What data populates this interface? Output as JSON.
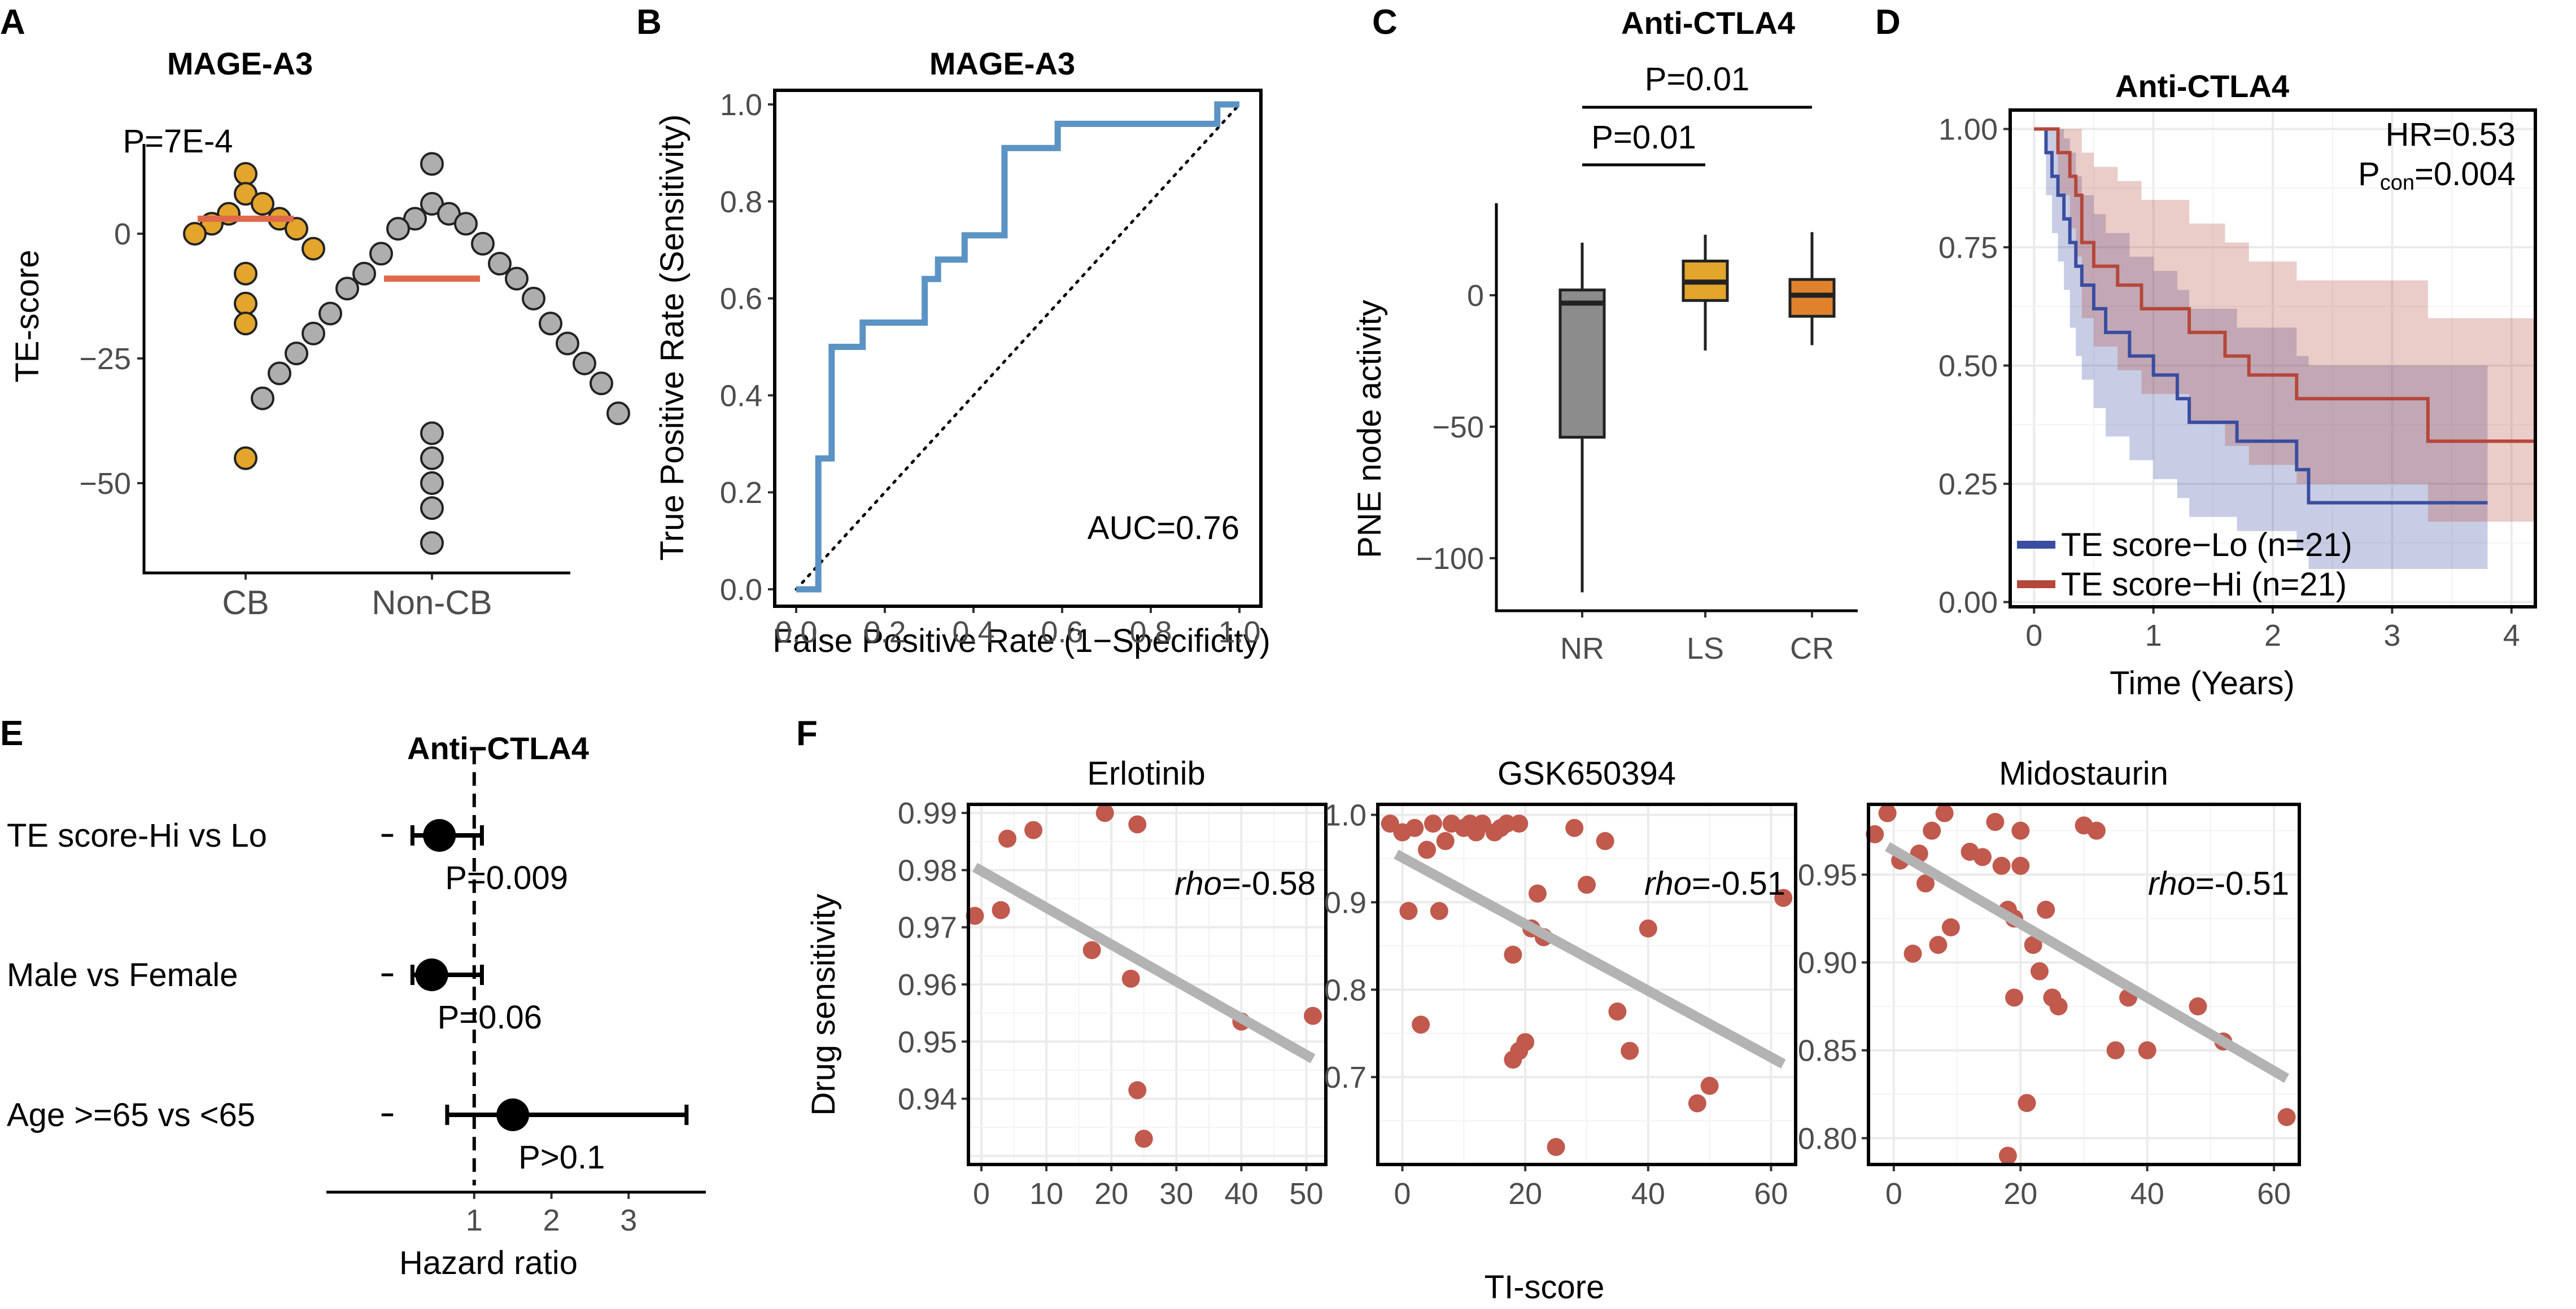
{
  "panel_letters": {
    "a": "A",
    "b": "B",
    "c": "C",
    "d": "D",
    "e": "E",
    "f": "F"
  },
  "chart_data": [
    {
      "id": "A",
      "type": "scatter",
      "title": "MAGE-A3",
      "ylabel": "TE-score",
      "categories": [
        "CB",
        "Non-CB"
      ],
      "ylim": [
        -68,
        18
      ],
      "yticks": [
        0,
        -25,
        -50
      ],
      "ytick_labels": [
        "0",
        "−25",
        "−50"
      ],
      "groups": [
        {
          "name": "CB",
          "color": "#E3A52C",
          "median": 3,
          "values": [
            12,
            8,
            6,
            4,
            3,
            2,
            1,
            0,
            -3,
            -8,
            -14,
            -18,
            -45
          ]
        },
        {
          "name": "Non-CB",
          "color": "#AEAEAE",
          "median": -9,
          "values": [
            14,
            6,
            4,
            3,
            2,
            1,
            -2,
            -4,
            -6,
            -8,
            -9,
            -11,
            -13,
            -16,
            -18,
            -20,
            -22,
            -24,
            -26,
            -28,
            -30,
            -33,
            -36,
            -40,
            -45,
            -50,
            -55,
            -62
          ]
        }
      ],
      "median_color": "#E0694B",
      "annotation": "P=7E-4"
    },
    {
      "id": "B",
      "type": "line",
      "title": "MAGE-A3",
      "xlabel": "False Positive Rate (1−Specificity)",
      "ylabel": "True Positive Rate (Sensitivity)",
      "xlim": [
        0,
        1
      ],
      "ylim": [
        0,
        1
      ],
      "ticks": [
        0.0,
        0.2,
        0.4,
        0.6,
        0.8,
        1.0
      ],
      "tick_labels": [
        "0.0",
        "0.2",
        "0.4",
        "0.6",
        "0.8",
        "1.0"
      ],
      "roc_x": [
        0,
        0.05,
        0.05,
        0.08,
        0.08,
        0.15,
        0.15,
        0.29,
        0.29,
        0.32,
        0.32,
        0.38,
        0.38,
        0.47,
        0.47,
        0.59,
        0.59,
        0.95,
        0.95,
        1.0
      ],
      "roc_y": [
        0,
        0,
        0.27,
        0.27,
        0.5,
        0.5,
        0.55,
        0.55,
        0.64,
        0.64,
        0.68,
        0.68,
        0.73,
        0.73,
        0.91,
        0.91,
        0.96,
        0.96,
        1.0,
        1.0
      ],
      "line_color": "#5B93C4",
      "annotation": "AUC=0.76"
    },
    {
      "id": "C",
      "type": "box",
      "title": "Anti-CTLA4",
      "ylabel": "PNE node activity",
      "categories": [
        "NR",
        "LS",
        "CR"
      ],
      "ylim": [
        -120,
        35
      ],
      "yticks": [
        0,
        -50,
        -100
      ],
      "ytick_labels": [
        "0",
        "−50",
        "−100"
      ],
      "boxes": [
        {
          "name": "NR",
          "min": -113,
          "q1": -54,
          "median": -3,
          "q3": 2,
          "max": 20,
          "color": "#8C8C8C"
        },
        {
          "name": "LS",
          "min": -21,
          "q1": -2,
          "median": 5,
          "q3": 13,
          "max": 23,
          "color": "#E3A52C"
        },
        {
          "name": "CR",
          "min": -19,
          "q1": -8,
          "median": 0,
          "q3": 6,
          "max": 24,
          "color": "#E0822C"
        }
      ],
      "comparisons": [
        {
          "label": "P=0.01",
          "from": "NR",
          "to": "LS"
        },
        {
          "label": "P=0.01",
          "from": "NR",
          "to": "CR"
        }
      ]
    },
    {
      "id": "D",
      "type": "line",
      "title": "Anti-CTLA4",
      "xlabel": "Time (Years)",
      "xlim": [
        -0.2,
        4.2
      ],
      "ylim": [
        -0.01,
        1.04
      ],
      "xticks": [
        0,
        1,
        2,
        3,
        4
      ],
      "yticks": [
        0.0,
        0.25,
        0.5,
        0.75,
        1.0
      ],
      "ytick_labels": [
        "0.00",
        "0.25",
        "0.50",
        "0.75",
        "1.00"
      ],
      "series": [
        {
          "name": "TE score−Lo (n=21)",
          "color": "#3A4DA0",
          "x": [
            0,
            0.1,
            0.15,
            0.2,
            0.25,
            0.3,
            0.35,
            0.4,
            0.5,
            0.6,
            0.8,
            1.0,
            1.1,
            1.2,
            1.3,
            1.4,
            1.7,
            1.9,
            2.2,
            2.3,
            3.8
          ],
          "y": [
            1.0,
            0.95,
            0.9,
            0.86,
            0.81,
            0.76,
            0.71,
            0.67,
            0.62,
            0.57,
            0.52,
            0.48,
            0.48,
            0.43,
            0.38,
            0.38,
            0.34,
            0.34,
            0.28,
            0.21,
            0.21
          ],
          "lower": [
            1.0,
            0.86,
            0.78,
            0.72,
            0.66,
            0.58,
            0.52,
            0.47,
            0.41,
            0.35,
            0.3,
            0.26,
            0.26,
            0.22,
            0.18,
            0.18,
            0.15,
            0.15,
            0.11,
            0.07,
            0.07
          ],
          "upper": [
            1.0,
            1.0,
            1.0,
            1.0,
            0.98,
            0.95,
            0.9,
            0.86,
            0.82,
            0.78,
            0.73,
            0.7,
            0.7,
            0.66,
            0.62,
            0.62,
            0.58,
            0.58,
            0.52,
            0.5,
            0.5
          ]
        },
        {
          "name": "TE score−Hi (n=21)",
          "color": "#B5473B",
          "x": [
            0,
            0.2,
            0.3,
            0.35,
            0.4,
            0.5,
            0.7,
            0.9,
            1.3,
            1.6,
            1.8,
            2.2,
            3.3,
            4.2
          ],
          "y": [
            1.0,
            0.95,
            0.9,
            0.86,
            0.76,
            0.71,
            0.67,
            0.62,
            0.57,
            0.52,
            0.48,
            0.43,
            0.34,
            0.34
          ],
          "lower": [
            1.0,
            0.86,
            0.79,
            0.73,
            0.6,
            0.54,
            0.49,
            0.44,
            0.38,
            0.33,
            0.29,
            0.25,
            0.17,
            0.17
          ],
          "upper": [
            1.0,
            1.0,
            1.0,
            1.0,
            0.95,
            0.92,
            0.89,
            0.85,
            0.8,
            0.76,
            0.72,
            0.68,
            0.6,
            0.6
          ]
        }
      ],
      "annotation_hr": "HR=0.53",
      "annotation_p": "P",
      "annotation_p_sub": "con",
      "annotation_p_val": "=0.004"
    },
    {
      "id": "E",
      "type": "scatter",
      "title": "Anti−CTLA4",
      "xlabel": "Hazard ratio",
      "xlim": [
        -0.9,
        4.0
      ],
      "xticks": [
        1,
        2,
        3
      ],
      "reference_line": 1,
      "rows": [
        {
          "label": "TE score-Hi vs Lo",
          "hr": 0.55,
          "lo": 0.2,
          "hi": 1.1,
          "p": "P=0.009"
        },
        {
          "label": "Male vs Female",
          "hr": 0.45,
          "lo": 0.2,
          "hi": 1.1,
          "p": "P=0.06"
        },
        {
          "label": "Age >=65 vs <65",
          "hr": 1.5,
          "lo": 0.65,
          "hi": 3.75,
          "p": "P>0.1"
        }
      ]
    },
    {
      "id": "F",
      "type": "scatter",
      "xlabel": "TI-score",
      "ylabel": "Drug sensitivity",
      "point_color": "#C1594D",
      "fit_color": "#B3B3B3",
      "panels": [
        {
          "title": "Erlotinib",
          "rho": "=-0.58",
          "xlim": [
            -2,
            53
          ],
          "ylim": [
            0.9285,
            0.9915
          ],
          "xticks": [
            0,
            10,
            20,
            30,
            40,
            50
          ],
          "yticks": [
            0.94,
            0.95,
            0.96,
            0.97,
            0.98,
            0.99
          ],
          "ytick_labels": [
            "0.94",
            "0.95",
            "0.96",
            "0.97",
            "0.98",
            "0.99"
          ],
          "fit": [
            [
              -1,
              0.9805
            ],
            [
              51,
              0.947
            ]
          ],
          "points": [
            [
              -1,
              0.972
            ],
            [
              3,
              0.973
            ],
            [
              4,
              0.9855
            ],
            [
              8,
              0.987
            ],
            [
              17,
              0.966
            ],
            [
              19,
              0.99
            ],
            [
              23,
              0.961
            ],
            [
              24,
              0.9415
            ],
            [
              24,
              0.988
            ],
            [
              25,
              0.933
            ],
            [
              40,
              0.9535
            ],
            [
              51,
              0.9545
            ]
          ]
        },
        {
          "title": "GSK650394",
          "rho": "=-0.51",
          "xlim": [
            -4,
            64
          ],
          "ylim": [
            0.6,
            1.012
          ],
          "xticks": [
            0,
            20,
            40,
            60
          ],
          "yticks": [
            0.7,
            0.8,
            0.9,
            1.0
          ],
          "ytick_labels": [
            "0.7",
            "0.8",
            "0.9",
            "1.0"
          ],
          "fit": [
            [
              -1,
              0.955
            ],
            [
              62,
              0.715
            ]
          ],
          "points": [
            [
              -2,
              0.99
            ],
            [
              0,
              0.98
            ],
            [
              1,
              0.89
            ],
            [
              2,
              0.985
            ],
            [
              3,
              0.76
            ],
            [
              4,
              0.96
            ],
            [
              5,
              0.99
            ],
            [
              6,
              0.89
            ],
            [
              7,
              0.97
            ],
            [
              8,
              0.99
            ],
            [
              10,
              0.985
            ],
            [
              11,
              0.99
            ],
            [
              12,
              0.98
            ],
            [
              13,
              0.99
            ],
            [
              15,
              0.98
            ],
            [
              16,
              0.985
            ],
            [
              17,
              0.99
            ],
            [
              18,
              0.84
            ],
            [
              18,
              0.72
            ],
            [
              19,
              0.73
            ],
            [
              19,
              0.99
            ],
            [
              20,
              0.74
            ],
            [
              21,
              0.87
            ],
            [
              22,
              0.91
            ],
            [
              23,
              0.86
            ],
            [
              25,
              0.62
            ],
            [
              28,
              0.985
            ],
            [
              30,
              0.92
            ],
            [
              33,
              0.97
            ],
            [
              35,
              0.775
            ],
            [
              37,
              0.73
            ],
            [
              40,
              0.87
            ],
            [
              48,
              0.67
            ],
            [
              50,
              0.69
            ],
            [
              62,
              0.905
            ]
          ]
        },
        {
          "title": "Midostaurin",
          "rho": "=-0.51",
          "xlim": [
            -4,
            64
          ],
          "ylim": [
            0.785,
            0.99
          ],
          "xticks": [
            0,
            20,
            40,
            60
          ],
          "yticks": [
            0.8,
            0.85,
            0.9,
            0.95
          ],
          "ytick_labels": [
            "0.80",
            "0.85",
            "0.90",
            "0.95"
          ],
          "fit": [
            [
              -1,
              0.966
            ],
            [
              62,
              0.834
            ]
          ],
          "points": [
            [
              -3,
              0.973
            ],
            [
              -1,
              0.985
            ],
            [
              1,
              0.958
            ],
            [
              3,
              0.905
            ],
            [
              4,
              0.962
            ],
            [
              5,
              0.945
            ],
            [
              6,
              0.975
            ],
            [
              7,
              0.91
            ],
            [
              8,
              0.985
            ],
            [
              9,
              0.92
            ],
            [
              12,
              0.963
            ],
            [
              14,
              0.96
            ],
            [
              16,
              0.98
            ],
            [
              17,
              0.955
            ],
            [
              18,
              0.93
            ],
            [
              18,
              0.79
            ],
            [
              19,
              0.925
            ],
            [
              19,
              0.88
            ],
            [
              20,
              0.975
            ],
            [
              20,
              0.955
            ],
            [
              21,
              0.82
            ],
            [
              22,
              0.91
            ],
            [
              23,
              0.895
            ],
            [
              24,
              0.93
            ],
            [
              25,
              0.88
            ],
            [
              26,
              0.875
            ],
            [
              30,
              0.978
            ],
            [
              32,
              0.975
            ],
            [
              35,
              0.85
            ],
            [
              37,
              0.88
            ],
            [
              40,
              0.85
            ],
            [
              48,
              0.875
            ],
            [
              52,
              0.855
            ],
            [
              62,
              0.812
            ]
          ]
        }
      ]
    }
  ]
}
